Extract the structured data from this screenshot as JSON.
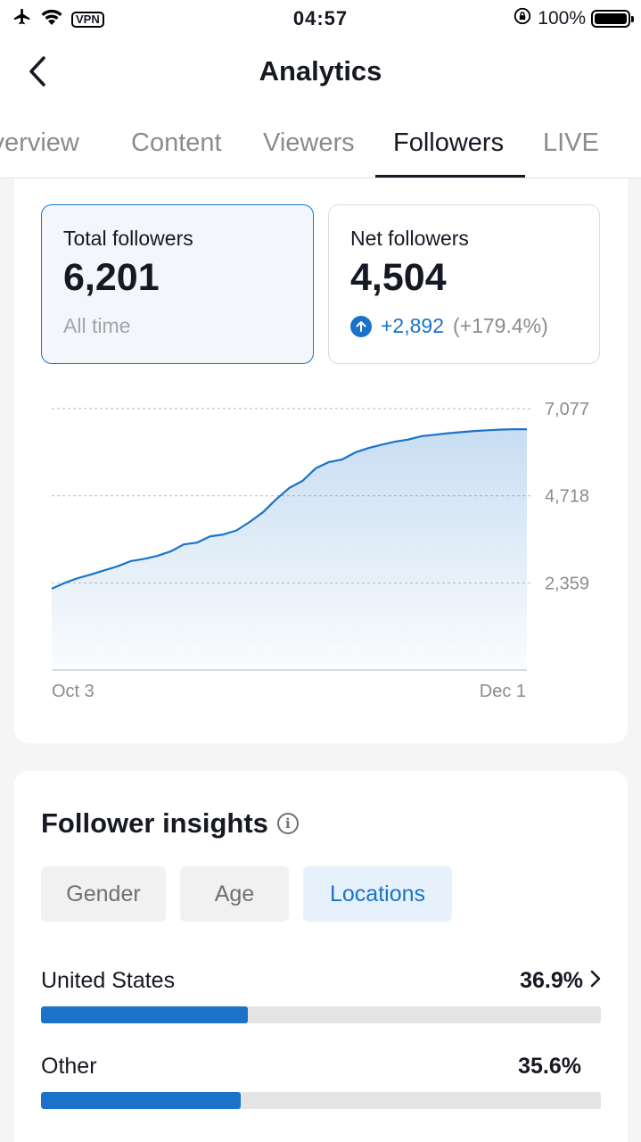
{
  "status_bar": {
    "time": "04:57",
    "vpn": "VPN",
    "battery": "100%",
    "icons": [
      "airplane-icon",
      "wifi-icon",
      "rotation-lock-icon",
      "battery-icon"
    ]
  },
  "header": {
    "title": "Analytics",
    "back_icon": "chevron-left-icon"
  },
  "tabs": [
    {
      "label": "Overview",
      "active": false
    },
    {
      "label": "Content",
      "active": false
    },
    {
      "label": "Viewers",
      "active": false
    },
    {
      "label": "Followers",
      "active": true
    },
    {
      "label": "LIVE",
      "active": false
    }
  ],
  "stats": {
    "total": {
      "label": "Total followers",
      "value": "6,201",
      "sub": "All time"
    },
    "net": {
      "label": "Net followers",
      "value": "4,504",
      "delta": "+2,892",
      "delta_pct": "(+179.4%)",
      "delta_icon": "arrow-up-icon"
    }
  },
  "colors": {
    "accent": "#1a73c9",
    "text": "#161823",
    "muted": "#8a8b91"
  },
  "chart_data": {
    "type": "area",
    "series": [
      {
        "values": [
          2200,
          2360,
          2490,
          2590,
          2700,
          2810,
          2950,
          3010,
          3090,
          3210,
          3400,
          3450,
          3620,
          3670,
          3780,
          4010,
          4270,
          4620,
          4930,
          5120,
          5460,
          5630,
          5700,
          5890,
          6010,
          6100,
          6180,
          6240,
          6330,
          6370,
          6410,
          6440,
          6470,
          6490,
          6510,
          6520,
          6520
        ]
      }
    ],
    "x_labels": [
      "Oct 3",
      "Dec 1"
    ],
    "y_ticks": [
      "7,077",
      "4,718",
      "2,359"
    ],
    "y_tick_values": [
      7077,
      4718,
      2359
    ],
    "ylim": [
      0,
      7077
    ],
    "grid": "dashed-horizontal"
  },
  "insights": {
    "title": "Follower insights",
    "info_icon": "info-icon",
    "chips": [
      {
        "label": "Gender",
        "active": false
      },
      {
        "label": "Age",
        "active": false
      },
      {
        "label": "Locations",
        "active": true
      }
    ],
    "locations": [
      {
        "name": "United States",
        "pct": "36.9%",
        "value": 36.9,
        "chevron": true
      },
      {
        "name": "Other",
        "pct": "35.6%",
        "value": 35.6,
        "chevron": false
      }
    ]
  }
}
